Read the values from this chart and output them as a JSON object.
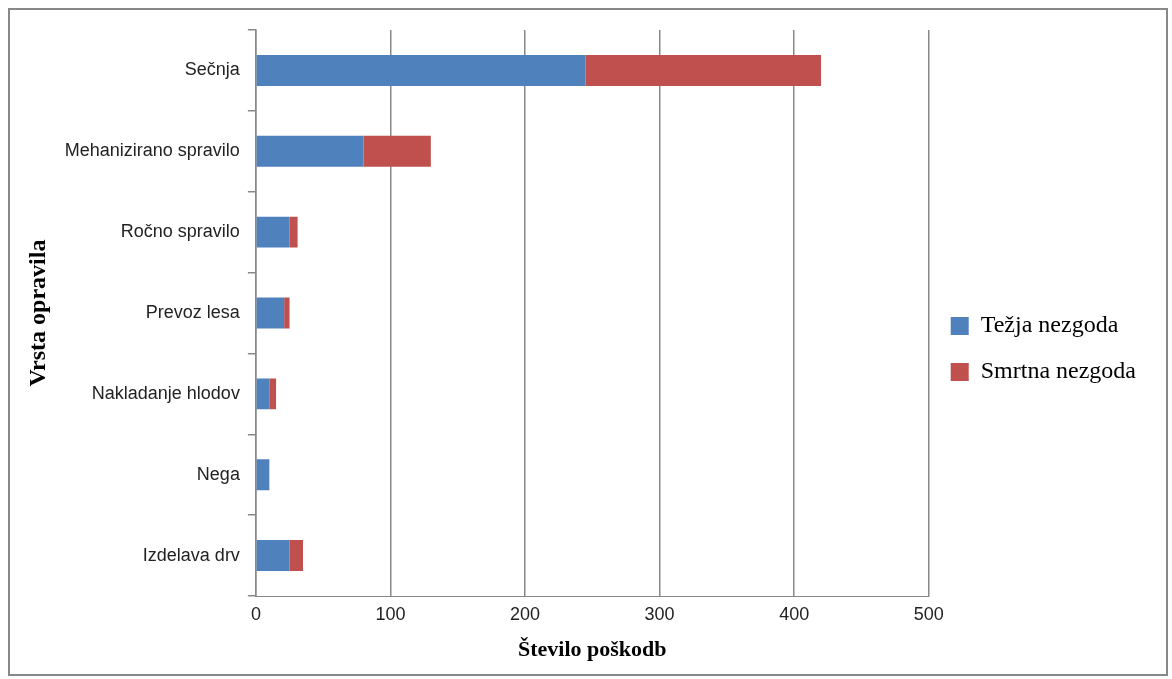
{
  "chart_data": {
    "type": "bar",
    "orientation": "horizontal",
    "stacked": true,
    "categories": [
      "Sečnja",
      "Mehanizirano spravilo",
      "Ročno spravilo",
      "Prevoz lesa",
      "Nakladanje hlodov",
      "Nega",
      "Izdelava drv"
    ],
    "series": [
      {
        "name": "Težja nezgoda",
        "color": "#4f81bd",
        "values": [
          245,
          80,
          25,
          21,
          10,
          10,
          25
        ]
      },
      {
        "name": "Smrtna nezgoda",
        "color": "#c0504d",
        "values": [
          175,
          50,
          6,
          4,
          5,
          0,
          10
        ]
      }
    ],
    "xlim": [
      0,
      500
    ],
    "xticks": [
      0,
      100,
      200,
      300,
      400,
      500
    ],
    "xlabel": "Število poškodb",
    "ylabel": "Vrsta opravila",
    "grid": "x",
    "legend": "right"
  }
}
